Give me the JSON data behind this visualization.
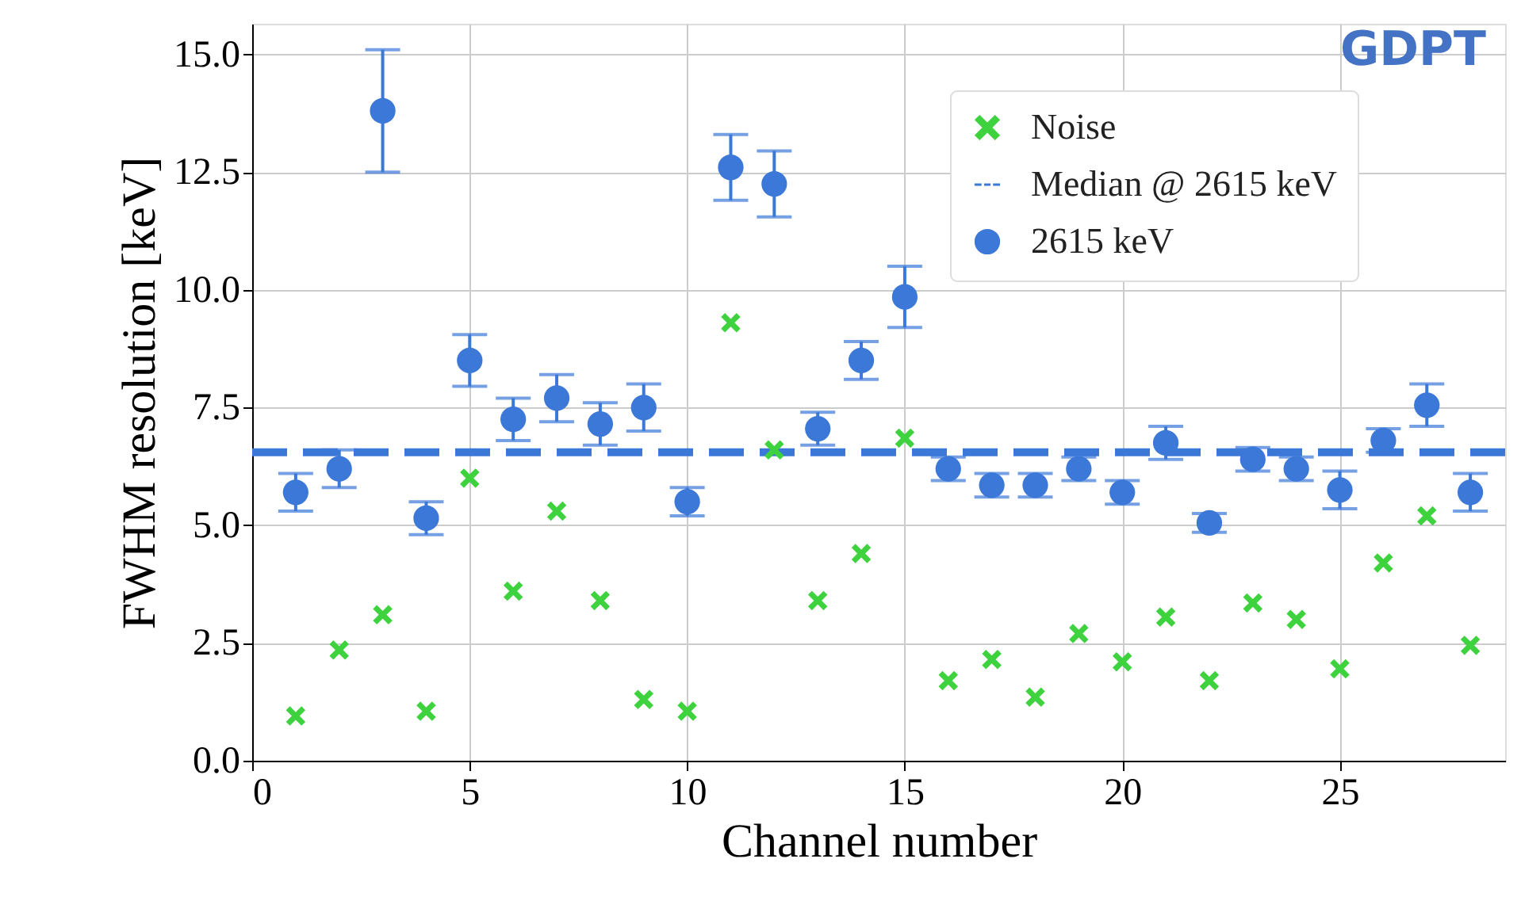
{
  "chart_data": {
    "type": "scatter",
    "xlabel": "Channel number",
    "ylabel": "FWHM resolution [keV]",
    "x": [
      1,
      2,
      3,
      4,
      5,
      6,
      7,
      8,
      9,
      10,
      11,
      12,
      13,
      14,
      15,
      16,
      17,
      18,
      19,
      20,
      21,
      22,
      23,
      24,
      25,
      26,
      27,
      28
    ],
    "series": [
      {
        "name": "Noise",
        "color": "#3fd23f",
        "marker": "cross",
        "values": [
          0.95,
          2.35,
          3.1,
          1.05,
          6.0,
          3.6,
          5.3,
          3.4,
          1.3,
          1.05,
          9.3,
          6.6,
          3.4,
          4.4,
          6.85,
          1.7,
          2.15,
          1.35,
          2.7,
          2.1,
          3.05,
          1.7,
          3.35,
          3.0,
          1.95,
          4.2,
          5.2,
          2.45
        ]
      },
      {
        "name": "2615 keV",
        "color": "#3c78d8",
        "marker": "circle",
        "values": [
          5.7,
          6.2,
          13.8,
          5.15,
          8.5,
          7.25,
          7.7,
          7.15,
          7.5,
          5.5,
          12.6,
          12.25,
          7.05,
          8.5,
          9.85,
          6.2,
          5.85,
          5.85,
          6.2,
          5.7,
          6.75,
          5.05,
          6.4,
          6.2,
          5.75,
          6.8,
          7.55,
          5.7
        ],
        "errors": [
          0.4,
          0.4,
          1.3,
          0.35,
          0.55,
          0.45,
          0.5,
          0.45,
          0.5,
          0.3,
          0.7,
          0.7,
          0.35,
          0.4,
          0.65,
          0.25,
          0.25,
          0.25,
          0.25,
          0.25,
          0.35,
          0.2,
          0.25,
          0.25,
          0.4,
          0.25,
          0.45,
          0.4
        ]
      }
    ],
    "ref_lines": [
      {
        "axis": "y",
        "value": 6.55,
        "label": "Median @ 2615 keV",
        "color": "#3c78d8",
        "line_style": "dashed"
      }
    ],
    "annotations": [
      "GDPT"
    ],
    "xlim": [
      0,
      28.8
    ],
    "ylim": [
      0,
      15.65
    ],
    "xticks": [
      0,
      5,
      10,
      15,
      20,
      25
    ],
    "yticks": [
      {
        "value": 0,
        "label": "0.0"
      },
      {
        "value": 2.5,
        "label": "2.5"
      },
      {
        "value": 5,
        "label": "5.0"
      },
      {
        "value": 7.5,
        "label": "7.5"
      },
      {
        "value": 10,
        "label": "10.0"
      },
      {
        "value": 12.5,
        "label": "12.5"
      },
      {
        "value": 15,
        "label": "15.0"
      }
    ],
    "grid": true,
    "legend": "top right"
  }
}
